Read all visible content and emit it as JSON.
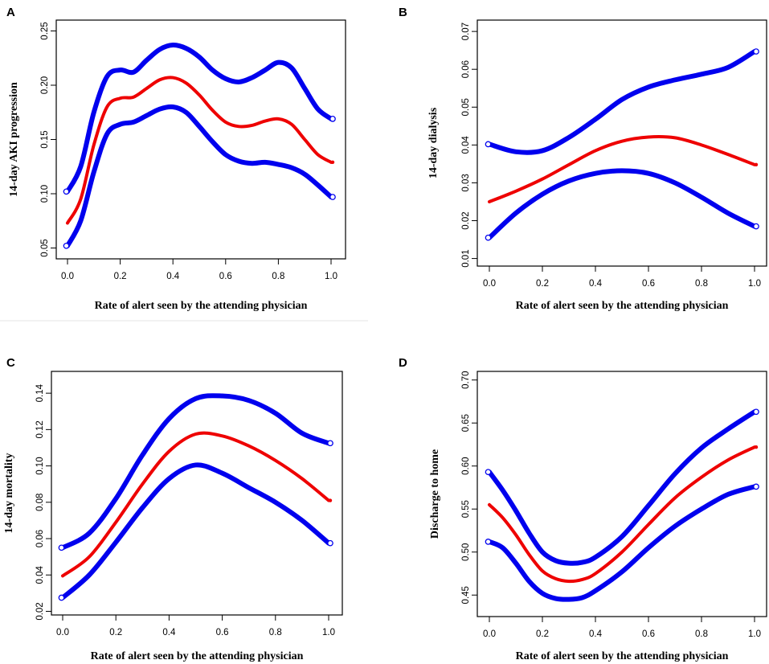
{
  "chart_data": [
    {
      "type": "line",
      "panel": "A",
      "xlabel": "Rate of alert seen by the attending physician",
      "ylabel": "14-day AKI progression",
      "xlim": [
        0,
        1
      ],
      "ylim": [
        0.04,
        0.26
      ],
      "xticks": [
        "0.0",
        "0.2",
        "0.4",
        "0.6",
        "0.8",
        "1.0"
      ],
      "yticks": [
        "0.05",
        "0.10",
        "0.15",
        "0.20",
        "0.25"
      ],
      "ytick_values": [
        0.05,
        0.1,
        0.15,
        0.2,
        0.25
      ],
      "series": [
        {
          "name": "upper",
          "color": "#0000ee",
          "x": [
            0.0,
            0.05,
            0.1,
            0.15,
            0.2,
            0.25,
            0.3,
            0.35,
            0.4,
            0.45,
            0.5,
            0.55,
            0.6,
            0.65,
            0.7,
            0.75,
            0.8,
            0.85,
            0.9,
            0.95,
            1.0
          ],
          "values": [
            0.102,
            0.125,
            0.175,
            0.208,
            0.214,
            0.212,
            0.223,
            0.233,
            0.237,
            0.234,
            0.226,
            0.214,
            0.206,
            0.203,
            0.207,
            0.214,
            0.221,
            0.216,
            0.197,
            0.178,
            0.169
          ]
        },
        {
          "name": "estimate",
          "color": "#ee0000",
          "x": [
            0.0,
            0.05,
            0.1,
            0.15,
            0.2,
            0.25,
            0.3,
            0.35,
            0.4,
            0.45,
            0.5,
            0.55,
            0.6,
            0.65,
            0.7,
            0.75,
            0.8,
            0.85,
            0.9,
            0.95,
            1.0
          ],
          "values": [
            0.073,
            0.095,
            0.145,
            0.18,
            0.188,
            0.189,
            0.197,
            0.205,
            0.207,
            0.202,
            0.191,
            0.177,
            0.166,
            0.162,
            0.163,
            0.167,
            0.169,
            0.164,
            0.15,
            0.136,
            0.129
          ]
        },
        {
          "name": "lower",
          "color": "#0000ee",
          "x": [
            0.0,
            0.05,
            0.1,
            0.15,
            0.2,
            0.25,
            0.3,
            0.35,
            0.4,
            0.45,
            0.5,
            0.55,
            0.6,
            0.65,
            0.7,
            0.75,
            0.8,
            0.85,
            0.9,
            0.95,
            1.0
          ],
          "values": [
            0.052,
            0.075,
            0.12,
            0.155,
            0.164,
            0.166,
            0.172,
            0.178,
            0.18,
            0.175,
            0.162,
            0.148,
            0.136,
            0.13,
            0.128,
            0.129,
            0.127,
            0.124,
            0.118,
            0.108,
            0.097
          ]
        }
      ]
    },
    {
      "type": "line",
      "panel": "B",
      "xlabel": "Rate of alert seen by the attending physician",
      "ylabel": "14-day dialysis",
      "xlim": [
        0,
        1
      ],
      "ylim": [
        0.008,
        0.073
      ],
      "xticks": [
        "0.0",
        "0.2",
        "0.4",
        "0.6",
        "0.8",
        "1.0"
      ],
      "yticks": [
        "0.01",
        "0.02",
        "0.03",
        "0.04",
        "0.05",
        "0.06",
        "0.07"
      ],
      "ytick_values": [
        0.01,
        0.02,
        0.03,
        0.04,
        0.05,
        0.06,
        0.07
      ],
      "series": [
        {
          "name": "upper",
          "color": "#0000ee",
          "x": [
            0.0,
            0.1,
            0.2,
            0.3,
            0.4,
            0.5,
            0.6,
            0.7,
            0.8,
            0.9,
            1.0
          ],
          "values": [
            0.0402,
            0.0382,
            0.0385,
            0.042,
            0.0468,
            0.052,
            0.0553,
            0.0572,
            0.0587,
            0.0605,
            0.0647
          ]
        },
        {
          "name": "estimate",
          "color": "#ee0000",
          "x": [
            0.0,
            0.1,
            0.2,
            0.3,
            0.4,
            0.5,
            0.6,
            0.7,
            0.8,
            0.9,
            1.0
          ],
          "values": [
            0.025,
            0.0278,
            0.031,
            0.0348,
            0.0385,
            0.041,
            0.0421,
            0.0419,
            0.04,
            0.0375,
            0.0348
          ]
        },
        {
          "name": "lower",
          "color": "#0000ee",
          "x": [
            0.0,
            0.1,
            0.2,
            0.3,
            0.4,
            0.5,
            0.6,
            0.7,
            0.8,
            0.9,
            1.0
          ],
          "values": [
            0.0155,
            0.022,
            0.027,
            0.0305,
            0.0325,
            0.0332,
            0.0325,
            0.03,
            0.0262,
            0.022,
            0.0185
          ]
        }
      ]
    },
    {
      "type": "line",
      "panel": "C",
      "xlabel": "Rate of alert seen by the attending physician",
      "ylabel": "14-day mortality",
      "xlim": [
        0,
        1
      ],
      "ylim": [
        0.018,
        0.152
      ],
      "xticks": [
        "0.0",
        "0.2",
        "0.4",
        "0.6",
        "0.8",
        "1.0"
      ],
      "yticks": [
        "0.02",
        "0.04",
        "0.06",
        "0.08",
        "0.10",
        "0.12",
        "0.14"
      ],
      "ytick_values": [
        0.02,
        0.04,
        0.06,
        0.08,
        0.1,
        0.12,
        0.14
      ],
      "series": [
        {
          "name": "upper",
          "color": "#0000ee",
          "x": [
            0.0,
            0.1,
            0.2,
            0.3,
            0.4,
            0.5,
            0.6,
            0.7,
            0.8,
            0.9,
            1.0
          ],
          "values": [
            0.055,
            0.063,
            0.082,
            0.106,
            0.126,
            0.137,
            0.1385,
            0.136,
            0.129,
            0.118,
            0.1125
          ]
        },
        {
          "name": "estimate",
          "color": "#ee0000",
          "x": [
            0.0,
            0.1,
            0.2,
            0.3,
            0.4,
            0.5,
            0.6,
            0.7,
            0.8,
            0.9,
            1.0
          ],
          "values": [
            0.0395,
            0.05,
            0.069,
            0.09,
            0.108,
            0.1175,
            0.1165,
            0.111,
            0.103,
            0.093,
            0.081
          ]
        },
        {
          "name": "lower",
          "color": "#0000ee",
          "x": [
            0.0,
            0.1,
            0.2,
            0.3,
            0.4,
            0.5,
            0.6,
            0.7,
            0.8,
            0.9,
            1.0
          ],
          "values": [
            0.0275,
            0.04,
            0.058,
            0.077,
            0.093,
            0.1005,
            0.096,
            0.088,
            0.08,
            0.07,
            0.0575
          ]
        }
      ]
    },
    {
      "type": "line",
      "panel": "D",
      "xlabel": "Rate of alert seen by the attending physician",
      "ylabel": "Discharge to home",
      "xlim": [
        0,
        1
      ],
      "ylim": [
        0.425,
        0.71
      ],
      "xticks": [
        "0.0",
        "0.2",
        "0.4",
        "0.6",
        "0.8",
        "1.0"
      ],
      "yticks": [
        "0.45",
        "0.50",
        "0.55",
        "0.60",
        "0.65",
        "0.70"
      ],
      "ytick_values": [
        0.45,
        0.5,
        0.55,
        0.6,
        0.65,
        0.7
      ],
      "series": [
        {
          "name": "upper",
          "color": "#0000ee",
          "x": [
            0.0,
            0.05,
            0.1,
            0.15,
            0.2,
            0.25,
            0.3,
            0.35,
            0.4,
            0.5,
            0.6,
            0.7,
            0.8,
            0.9,
            1.0
          ],
          "values": [
            0.593,
            0.572,
            0.548,
            0.522,
            0.5,
            0.49,
            0.487,
            0.488,
            0.494,
            0.518,
            0.554,
            0.591,
            0.621,
            0.643,
            0.663
          ]
        },
        {
          "name": "estimate",
          "color": "#ee0000",
          "x": [
            0.0,
            0.05,
            0.1,
            0.15,
            0.2,
            0.25,
            0.3,
            0.35,
            0.4,
            0.5,
            0.6,
            0.7,
            0.8,
            0.9,
            1.0
          ],
          "values": [
            0.555,
            0.54,
            0.52,
            0.497,
            0.478,
            0.469,
            0.466,
            0.468,
            0.475,
            0.5,
            0.532,
            0.563,
            0.587,
            0.607,
            0.622
          ]
        },
        {
          "name": "lower",
          "color": "#0000ee",
          "x": [
            0.0,
            0.05,
            0.1,
            0.15,
            0.2,
            0.25,
            0.3,
            0.35,
            0.4,
            0.5,
            0.6,
            0.7,
            0.8,
            0.9,
            1.0
          ],
          "values": [
            0.512,
            0.505,
            0.487,
            0.466,
            0.452,
            0.446,
            0.445,
            0.447,
            0.455,
            0.477,
            0.505,
            0.53,
            0.55,
            0.567,
            0.576
          ]
        }
      ]
    }
  ]
}
